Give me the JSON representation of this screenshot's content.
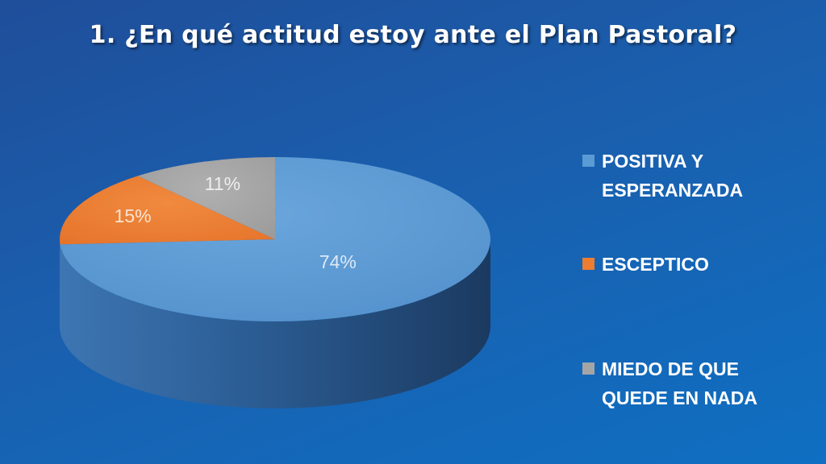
{
  "chart_data": {
    "type": "pie",
    "title": "1. ¿En qué actitud estoy ante el Plan Pastoral?",
    "categories": [
      "POSITIVA Y ESPERANZADA",
      "ESCEPTICO",
      "MIEDO DE QUE QUEDE EN NADA"
    ],
    "values": [
      74,
      15,
      11
    ],
    "data_labels": [
      "74%",
      "15%",
      "11%"
    ],
    "colors": [
      "#5b9bd5",
      "#ed7d31",
      "#a5a5a5"
    ],
    "style": "3d",
    "legend_position": "right"
  }
}
